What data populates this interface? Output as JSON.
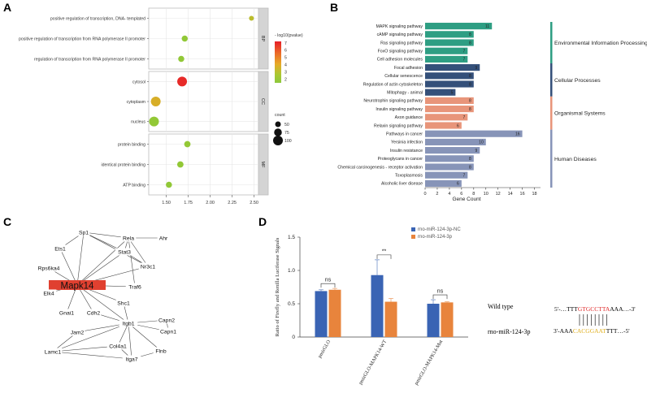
{
  "panels": {
    "a": {
      "letter": "A"
    },
    "b": {
      "letter": "B"
    },
    "c": {
      "letter": "C"
    },
    "d": {
      "letter": "D"
    }
  },
  "colors": {
    "env": "#2e9e83",
    "cell": "#34507a",
    "org": "#e8957a",
    "human": "#8794b8",
    "nc_bar": "#3a64b4",
    "mir_bar": "#e8843c",
    "seed_red": "#e02b2b",
    "seed_gold": "#e0b020",
    "node_hub": "#e04030"
  },
  "chart_data": [
    {
      "type": "scatter",
      "id": "A",
      "xlim": [
        1.3,
        2.55
      ],
      "xticks": [
        "1.50",
        "1.75",
        "2.00",
        "2.25",
        "2.50"
      ],
      "color_scale": {
        "title": "- log10(pvalue)",
        "ticks": [
          "7",
          "6",
          "5",
          "4",
          "3",
          "2"
        ],
        "range": [
          1.5,
          7.2
        ]
      },
      "size_legend": {
        "title": "count",
        "entries": [
          "50",
          "75",
          "100"
        ]
      },
      "facets": [
        {
          "name": "BP",
          "points": [
            {
              "label": "positive regulation of transcription, DNA- templated",
              "x": 2.47,
              "log10p": 3.6,
              "count": 40
            },
            {
              "label": "positive regulation of transcription from RNA polymerase II promoter",
              "x": 1.71,
              "log10p": 2.3,
              "count": 55
            },
            {
              "label": "regulation of transcription from RNA polymerase II promoter",
              "x": 1.67,
              "log10p": 2.2,
              "count": 55
            }
          ]
        },
        {
          "name": "CC",
          "points": [
            {
              "label": "cytosol",
              "x": 1.68,
              "log10p": 7.0,
              "count": 100
            },
            {
              "label": "cytoplasm",
              "x": 1.38,
              "log10p": 4.2,
              "count": 100
            },
            {
              "label": "nucleus",
              "x": 1.36,
              "log10p": 2.4,
              "count": 100
            }
          ]
        },
        {
          "name": "MF",
          "points": [
            {
              "label": "protein binding",
              "x": 1.74,
              "log10p": 2.6,
              "count": 58
            },
            {
              "label": "identical protein binding",
              "x": 1.66,
              "log10p": 2.4,
              "count": 58
            },
            {
              "label": "ATP binding",
              "x": 1.53,
              "log10p": 2.3,
              "count": 55
            }
          ]
        }
      ]
    },
    {
      "type": "bar",
      "id": "B",
      "orientation": "horizontal",
      "xlabel": "Gene Count",
      "xlim": [
        0,
        19
      ],
      "xticks": [
        "0",
        "2",
        "4",
        "6",
        "8",
        "10",
        "12",
        "14",
        "16",
        "18"
      ],
      "groups": [
        {
          "name": "Environmental Information Processing",
          "color_key": "env",
          "bars": [
            {
              "label": "MAPK signaling pathway",
              "value": 11
            },
            {
              "label": "cAMP signaling pathway",
              "value": 8
            },
            {
              "label": "Ras signaling pathway",
              "value": 8
            },
            {
              "label": "FoxO signaling pathway",
              "value": 7
            },
            {
              "label": "Cell adhesion molecules",
              "value": 7
            }
          ]
        },
        {
          "name": "Cellular Processes",
          "color_key": "cell",
          "bars": [
            {
              "label": "Focal adhesion",
              "value": 9
            },
            {
              "label": "Cellular senescence",
              "value": 8
            },
            {
              "label": "Regulation of actin cytoskeleton",
              "value": 8
            },
            {
              "label": "Mitophagy - animal",
              "value": 5
            }
          ]
        },
        {
          "name": "Organismal Systems",
          "color_key": "org",
          "bars": [
            {
              "label": "Neurotrophin signaling pathway",
              "value": 8
            },
            {
              "label": "Insulin signaling pathway",
              "value": 8
            },
            {
              "label": "Axon guidance",
              "value": 7
            },
            {
              "label": "Relaxin signaling pathway",
              "value": 6
            }
          ]
        },
        {
          "name": "Human Diseases",
          "color_key": "human",
          "bars": [
            {
              "label": "Pathways in cancer",
              "value": 16
            },
            {
              "label": "Yersinia infection",
              "value": 10
            },
            {
              "label": "Insulin resistance",
              "value": 9
            },
            {
              "label": "Proteoglycans in cancer",
              "value": 8
            },
            {
              "label": "Chemical carcinogenesis - receptor activation",
              "value": 8
            },
            {
              "label": "Toxoplasmosis",
              "value": 7
            },
            {
              "label": "Alcoholic liver disease",
              "value": 6
            }
          ]
        }
      ]
    },
    {
      "type": "network",
      "id": "C",
      "hub": "Mapk14",
      "nodes": [
        "Sp1",
        "Rela",
        "Ahr",
        "Ets1",
        "Stat3",
        "Nr3c1",
        "Rps6ka4",
        "Mapk14",
        "Traf6",
        "Elk4",
        "Shc1",
        "Gnai1",
        "Cdh2",
        "Capn2",
        "Jam2",
        "Itgb1",
        "Capn1",
        "Col4a1",
        "Flnb",
        "Lamc1",
        "Itga7"
      ],
      "edges": [
        [
          "Sp1",
          "Rela"
        ],
        [
          "Sp1",
          "Stat3"
        ],
        [
          "Sp1",
          "Ets1"
        ],
        [
          "Sp1",
          "Mapk14"
        ],
        [
          "Sp1",
          "Nr3c1"
        ],
        [
          "Rela",
          "Ahr"
        ],
        [
          "Rela",
          "Stat3"
        ],
        [
          "Rela",
          "Nr3c1"
        ],
        [
          "Rela",
          "Mapk14"
        ],
        [
          "Rela",
          "Traf6"
        ],
        [
          "Stat3",
          "Mapk14"
        ],
        [
          "Stat3",
          "Nr3c1"
        ],
        [
          "Ets1",
          "Mapk14"
        ],
        [
          "Nr3c1",
          "Mapk14"
        ],
        [
          "Rps6ka4",
          "Mapk14"
        ],
        [
          "Elk4",
          "Mapk14"
        ],
        [
          "Gnai1",
          "Mapk14"
        ],
        [
          "Traf6",
          "Mapk14"
        ],
        [
          "Shc1",
          "Mapk14"
        ],
        [
          "Cdh2",
          "Mapk14"
        ],
        [
          "Itgb1",
          "Mapk14"
        ],
        [
          "Shc1",
          "Itgb1"
        ],
        [
          "Cdh2",
          "Itgb1"
        ],
        [
          "Capn2",
          "Itgb1"
        ],
        [
          "Capn1",
          "Itgb1"
        ],
        [
          "Capn2",
          "Capn1"
        ],
        [
          "Jam2",
          "Itgb1"
        ],
        [
          "Col4a1",
          "Itgb1"
        ],
        [
          "Flnb",
          "Itgb1"
        ],
        [
          "Itga7",
          "Itgb1"
        ],
        [
          "Lamc1",
          "Itgb1"
        ],
        [
          "Lamc1",
          "Col4a1"
        ],
        [
          "Lamc1",
          "Itga7"
        ],
        [
          "Col4a1",
          "Itga7"
        ],
        [
          "Flnb",
          "Itga7"
        ],
        [
          "Jam2",
          "Lamc1"
        ]
      ]
    },
    {
      "type": "bar",
      "id": "D",
      "ylabel": "Ratio of Firefly and Renilla Luciferase Signals",
      "ylim": [
        0,
        1.5
      ],
      "yticks": [
        "0",
        "0.5",
        "1.0",
        "1.5"
      ],
      "categories": [
        "pmirGLO",
        "pmirGLO-MAPK14-WT",
        "pmirGLO-MAPK14-Mut"
      ],
      "series": [
        {
          "name": "rno-miR-124-3p-NC",
          "color_key": "nc_bar",
          "values": [
            0.69,
            0.93,
            0.5
          ],
          "errors": [
            0.02,
            0.23,
            0.06
          ]
        },
        {
          "name": "rno-miR-124-3p",
          "color_key": "mir_bar",
          "values": [
            0.71,
            0.53,
            0.52
          ],
          "errors": [
            0.02,
            0.05,
            0.01
          ]
        }
      ],
      "significance": [
        "ns",
        "**",
        "ns"
      ]
    }
  ],
  "seed": {
    "wild_type_label": "Wild type",
    "wt_pre": "5'-…TTT",
    "wt_seed": "GTGCCTTA",
    "wt_post": "AAA…-3'",
    "mir_label": "rno-miR-124-3p",
    "mir_pre": "3'-AAA",
    "mir_seed": "CACGGAAT",
    "mir_post": "TTT…-5'"
  }
}
